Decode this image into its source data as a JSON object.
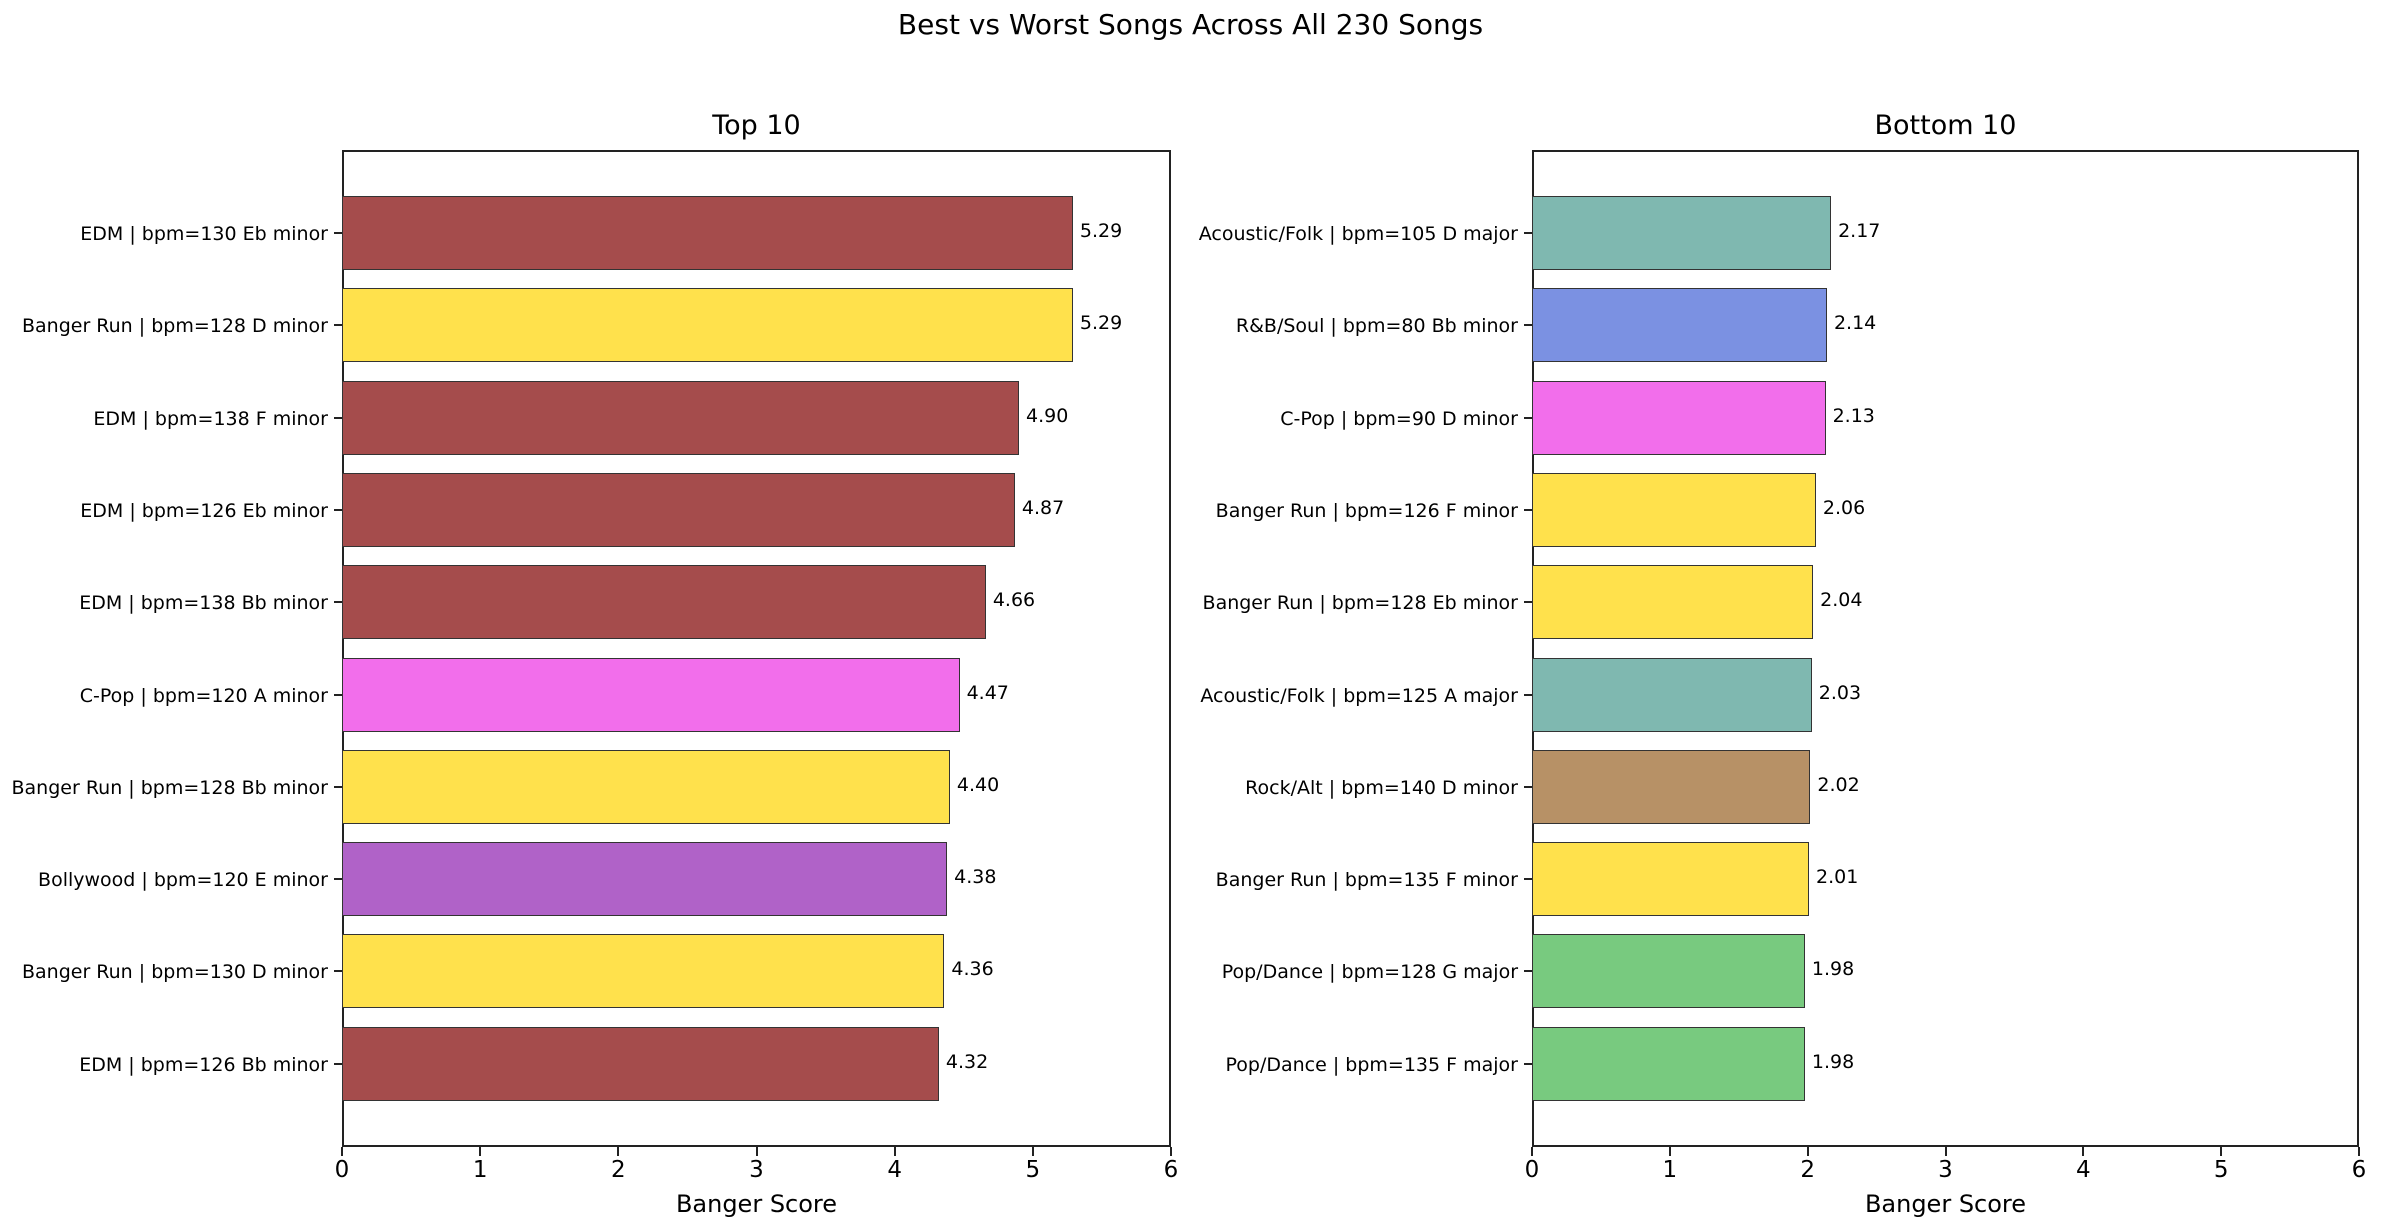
{
  "figure": {
    "suptitle": "Best vs Worst Songs Across All 230 Songs"
  },
  "chart_data": [
    {
      "type": "bar",
      "orientation": "horizontal",
      "title": "Top 10",
      "xlabel": "Banger Score",
      "ylabel": "",
      "xlim": [
        0,
        6
      ],
      "xticks": [
        "0",
        "1",
        "2",
        "3",
        "4",
        "5",
        "6"
      ],
      "grid": false,
      "categories": [
        "EDM | bpm=130 Eb minor",
        "Banger Run | bpm=128 D minor",
        "EDM | bpm=138 F minor",
        "EDM | bpm=126 Eb minor",
        "EDM | bpm=138 Bb minor",
        "C-Pop | bpm=120 A minor",
        "Banger Run | bpm=128 Bb minor",
        "Bollywood | bpm=120 E minor",
        "Banger Run | bpm=130 D minor",
        "EDM | bpm=126 Bb minor"
      ],
      "values": [
        5.29,
        5.29,
        4.9,
        4.87,
        4.66,
        4.47,
        4.4,
        4.38,
        4.36,
        4.32
      ],
      "value_labels": [
        "5.29",
        "5.29",
        "4.90",
        "4.87",
        "4.66",
        "4.47",
        "4.40",
        "4.38",
        "4.36",
        "4.32"
      ],
      "colors": [
        "#a54c4c",
        "#ffe14c",
        "#a54c4c",
        "#a54c4c",
        "#a54c4c",
        "#f26eeb",
        "#ffe14c",
        "#b062c8",
        "#ffe14c",
        "#a54c4c"
      ]
    },
    {
      "type": "bar",
      "orientation": "horizontal",
      "title": "Bottom 10",
      "xlabel": "Banger Score",
      "ylabel": "",
      "xlim": [
        0,
        6
      ],
      "xticks": [
        "0",
        "1",
        "2",
        "3",
        "4",
        "5",
        "6"
      ],
      "grid": false,
      "categories": [
        "Acoustic/Folk | bpm=105 D major",
        "R&B/Soul | bpm=80 Bb minor",
        "C-Pop | bpm=90 D minor",
        "Banger Run | bpm=126 F minor",
        "Banger Run | bpm=128 Eb minor",
        "Acoustic/Folk | bpm=125 A major",
        "Rock/Alt | bpm=140 D minor",
        "Banger Run | bpm=135 F minor",
        "Pop/Dance | bpm=128 G major",
        "Pop/Dance | bpm=135 F major"
      ],
      "values": [
        2.17,
        2.14,
        2.13,
        2.06,
        2.04,
        2.03,
        2.02,
        2.01,
        1.98,
        1.98
      ],
      "value_labels": [
        "2.17",
        "2.14",
        "2.13",
        "2.06",
        "2.04",
        "2.03",
        "2.02",
        "2.01",
        "1.98",
        "1.98"
      ],
      "colors": [
        "#7fb8b0",
        "#7b91e2",
        "#f26eeb",
        "#ffe14c",
        "#ffe14c",
        "#7fb8b0",
        "#b79166",
        "#ffe14c",
        "#78ca7f",
        "#78ca7f"
      ]
    }
  ]
}
